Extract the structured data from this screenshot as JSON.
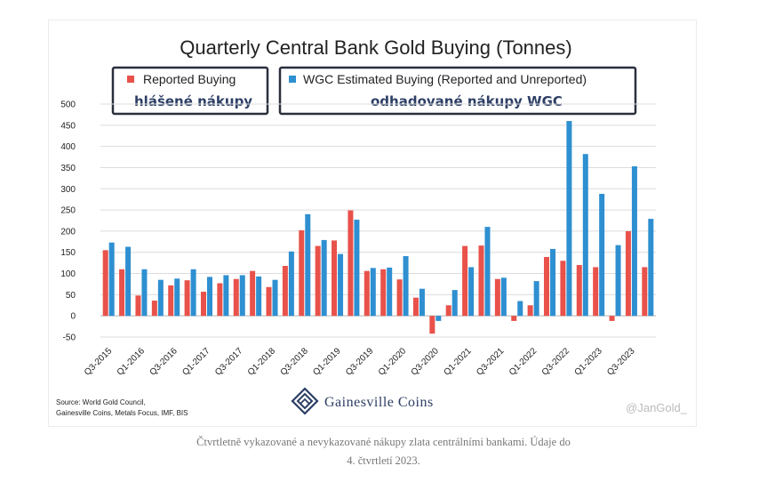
{
  "chart_data": {
    "type": "bar",
    "title": "Quarterly Central Bank Gold Buying (Tonnes)",
    "ylim": [
      -50,
      500
    ],
    "yticks": [
      -50,
      0,
      50,
      100,
      150,
      200,
      250,
      300,
      350,
      400,
      450,
      500
    ],
    "grid": true,
    "legend_placement": "top",
    "categories": [
      "Q3-2015",
      "Q4-2015",
      "Q1-2016",
      "Q2-2016",
      "Q3-2016",
      "Q4-2016",
      "Q1-2017",
      "Q2-2017",
      "Q3-2017",
      "Q4-2017",
      "Q1-2018",
      "Q2-2018",
      "Q3-2018",
      "Q4-2018",
      "Q1-2019",
      "Q2-2019",
      "Q3-2019",
      "Q4-2019",
      "Q1-2020",
      "Q2-2020",
      "Q3-2020",
      "Q4-2020",
      "Q1-2021",
      "Q2-2021",
      "Q3-2021",
      "Q4-2021",
      "Q1-2022",
      "Q2-2022",
      "Q3-2022",
      "Q4-2022",
      "Q1-2023",
      "Q2-2023",
      "Q3-2023",
      "Q4-2023"
    ],
    "xtick_labels": [
      "Q3-2015",
      "Q1-2016",
      "Q3-2016",
      "Q1-2017",
      "Q3-2017",
      "Q1-2018",
      "Q3-2018",
      "Q1-2019",
      "Q3-2019",
      "Q1-2020",
      "Q3-2020",
      "Q1-2021",
      "Q3-2021",
      "Q1-2022",
      "Q3-2022",
      "Q1-2023",
      "Q3-2023"
    ],
    "series": [
      {
        "name": "Reported Buying",
        "color": "#e8524a",
        "values": [
          155,
          110,
          48,
          36,
          72,
          84,
          57,
          77,
          87,
          106,
          68,
          118,
          202,
          165,
          178,
          249,
          106,
          110,
          86,
          43,
          -42,
          25,
          165,
          166,
          87,
          -12,
          25,
          139,
          130,
          120,
          115,
          -12,
          200,
          115
        ]
      },
      {
        "name": "WGC Estimated Buying (Reported and Unreported)",
        "color": "#2e8fd1",
        "values": [
          173,
          163,
          110,
          85,
          88,
          110,
          92,
          96,
          96,
          93,
          85,
          152,
          240,
          179,
          146,
          227,
          113,
          114,
          141,
          64,
          -12,
          61,
          115,
          210,
          90,
          35,
          82,
          158,
          460,
          382,
          288,
          167,
          353,
          229
        ]
      }
    ]
  },
  "legend": {
    "reported_label": "Reported Buying",
    "reported_cz": "hlášené nákupy",
    "wgc_label": "WGC Estimated Buying (Reported and Unreported)",
    "wgc_cz": "odhadované nákupy WGC"
  },
  "source": {
    "line1": "Source: World Gold Council,",
    "line2": "Gainesville Coins, Metals Focus, IMF, BIS"
  },
  "brand": {
    "name": "Gainesville Coins"
  },
  "watermark": "@JanGold_",
  "caption": {
    "line1": "Čtvrtletně vykazované a nevykazované nákupy zlata centrálními bankami. Údaje do",
    "line2": "4. čtvrtletí 2023."
  }
}
